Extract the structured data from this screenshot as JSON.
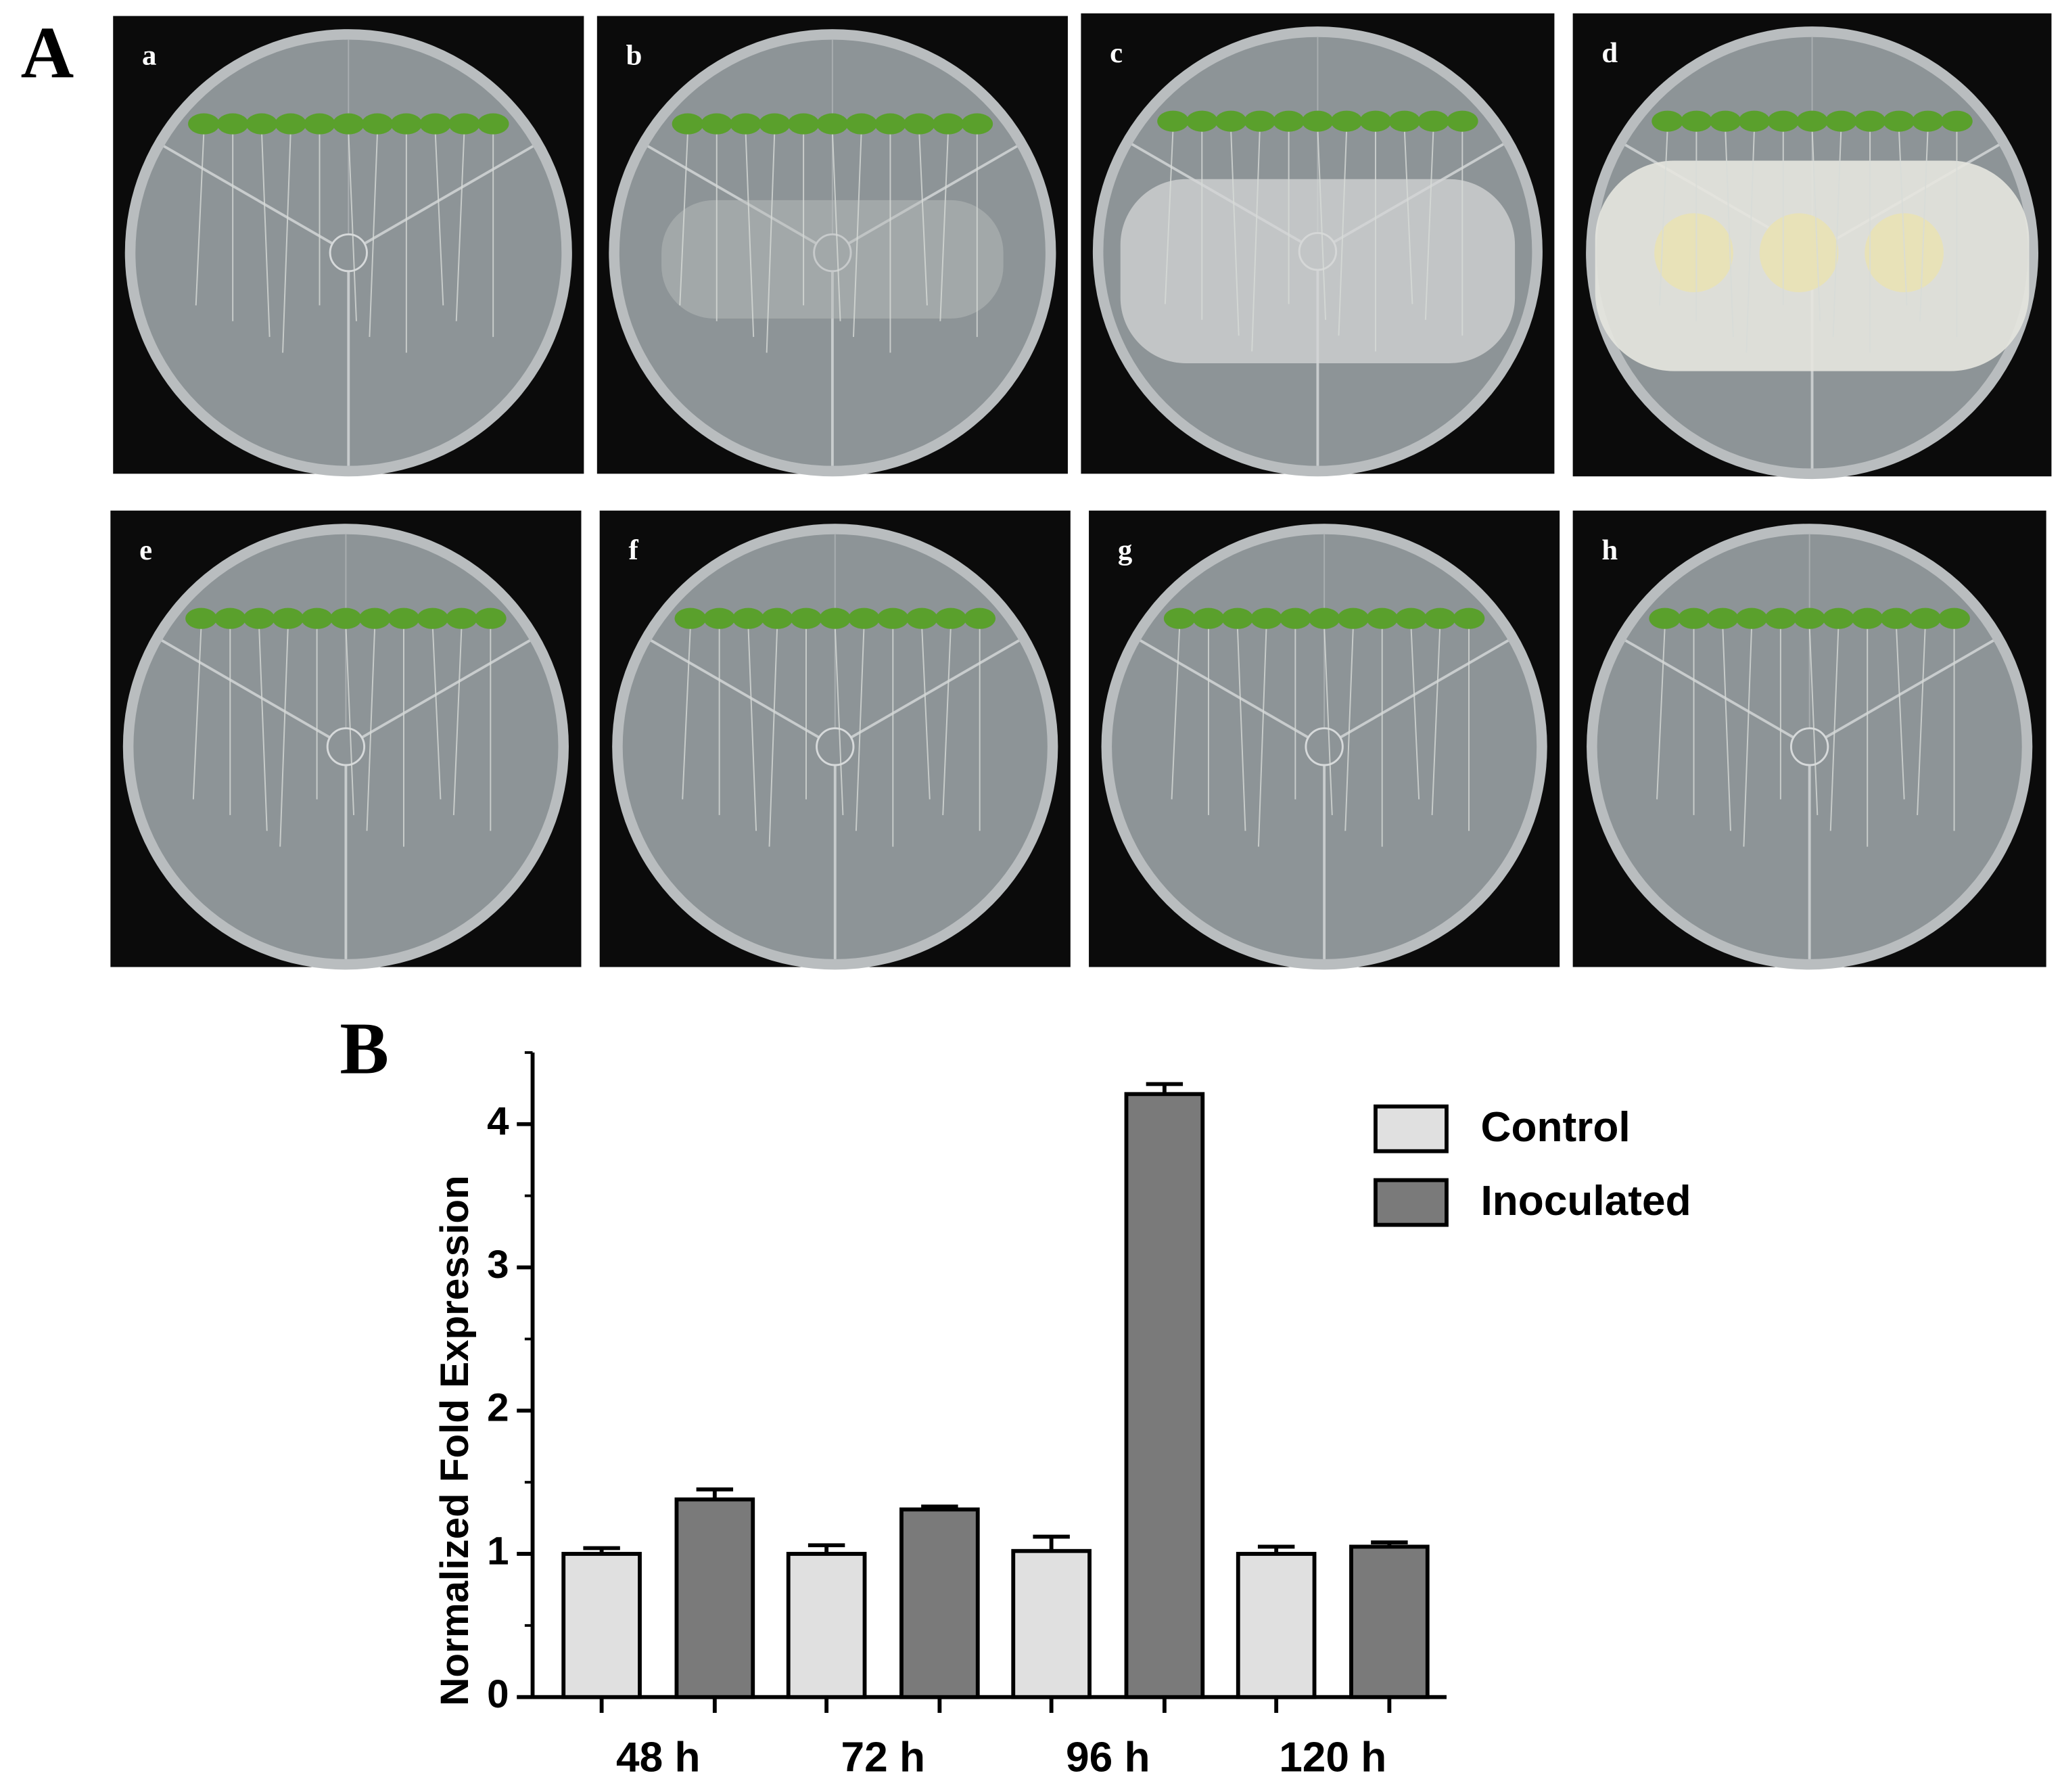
{
  "panel_labels": [
    "A",
    "B"
  ],
  "photos": [
    "a",
    "b",
    "c",
    "d",
    "e",
    "f",
    "g",
    "h"
  ],
  "chart_data": {
    "type": "bar",
    "ylabel": "Normalized Fold Expression",
    "categories": [
      "48 h",
      "72 h",
      "96 h",
      "120 h"
    ],
    "series": [
      {
        "name": "Control",
        "color": "#e0e0e0",
        "values": [
          1.0,
          1.0,
          1.02,
          1.0
        ],
        "errors": [
          0.04,
          0.06,
          0.1,
          0.05
        ]
      },
      {
        "name": "Inoculated",
        "color": "#7a7a7a",
        "values": [
          1.38,
          1.31,
          4.21,
          1.05
        ],
        "errors": [
          0.07,
          0.02,
          0.07,
          0.03
        ]
      }
    ],
    "ylim": [
      0,
      4.5
    ],
    "yticks": [
      0,
      1,
      2,
      3,
      4
    ],
    "minor_yticks": [
      0.5,
      1.5,
      2.5,
      3.5,
      4.5
    ],
    "legend": "top-right"
  }
}
